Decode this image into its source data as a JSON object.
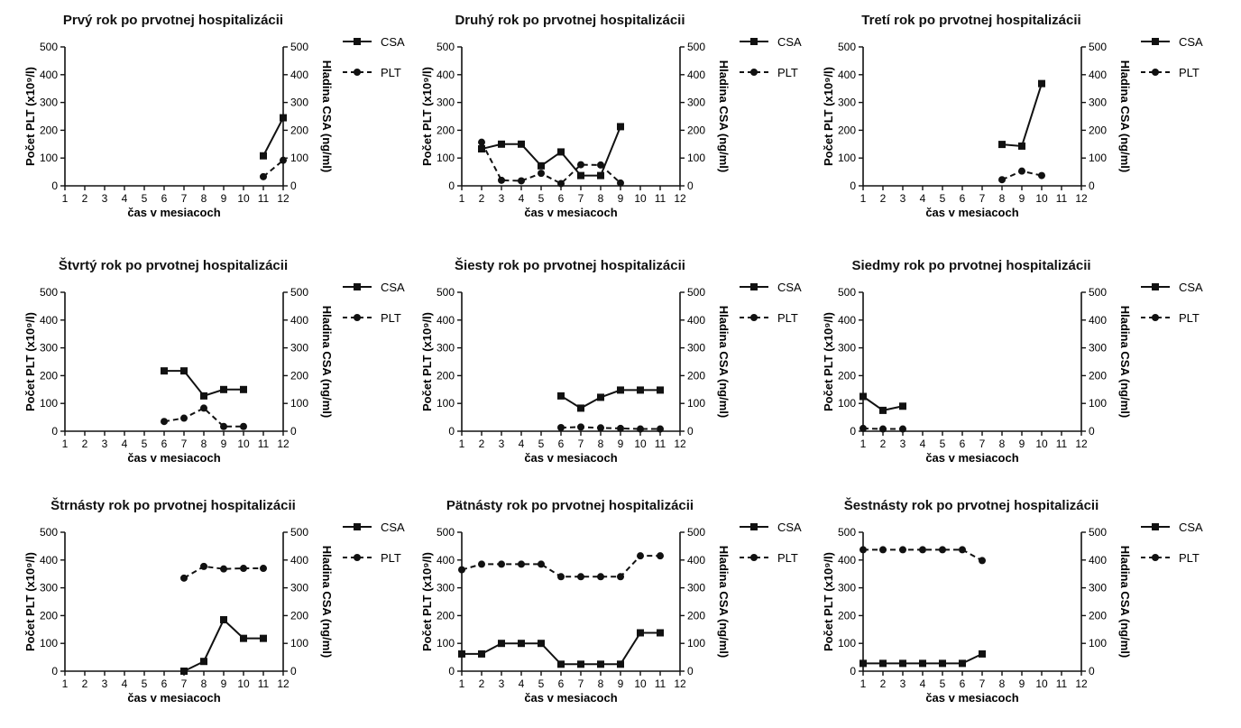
{
  "figure": {
    "chart_data": [
      {
        "type": "line",
        "title": "Prvý rok po prvotnej hospitalizácii",
        "xlabel": "čas v mesiacoch",
        "ylabel": "Počet PLT (x10⁹/l)",
        "ylabel_right": "Hladina CSA (ng/ml)",
        "categories": [
          "1",
          "2",
          "3",
          "4",
          "5",
          "6",
          "7",
          "8",
          "9",
          "10",
          "11",
          "12"
        ],
        "ylim": [
          0,
          500
        ],
        "y2lim": [
          0,
          500
        ],
        "yticks": [
          "0",
          "100",
          "200",
          "300",
          "400",
          "500"
        ],
        "y2ticks": [
          "0",
          "100",
          "200",
          "300",
          "400",
          "500"
        ],
        "legend": "right",
        "series": [
          {
            "name": "CSA",
            "style": "solid",
            "marker": "square",
            "x": [
              11,
              12
            ],
            "values": [
              108,
              245
            ]
          },
          {
            "name": "PLT",
            "style": "dashed",
            "marker": "circle",
            "x": [
              11,
              12
            ],
            "values": [
              33,
              92
            ]
          }
        ]
      },
      {
        "type": "line",
        "title": "Druhý rok po prvotnej hospitalizácii",
        "xlabel": "čas v mesiacoch",
        "ylabel": "Počet PLT (x10⁹/l)",
        "ylabel_right": "Hladina CSA (ng/ml)",
        "categories": [
          "1",
          "2",
          "3",
          "4",
          "5",
          "6",
          "7",
          "8",
          "9",
          "10",
          "11",
          "12"
        ],
        "ylim": [
          0,
          500
        ],
        "y2lim": [
          0,
          500
        ],
        "yticks": [
          "0",
          "100",
          "200",
          "300",
          "400",
          "500"
        ],
        "y2ticks": [
          "0",
          "100",
          "200",
          "300",
          "400",
          "500"
        ],
        "legend": "right",
        "series": [
          {
            "name": "CSA",
            "style": "solid",
            "marker": "square",
            "x": [
              2,
              3,
              4,
              5,
              6,
              7,
              8,
              9
            ],
            "values": [
              133,
              150,
              150,
              72,
              122,
              37,
              37,
              213
            ]
          },
          {
            "name": "PLT",
            "style": "dashed",
            "marker": "circle",
            "x": [
              2,
              3,
              4,
              5,
              6,
              7,
              8,
              9
            ],
            "values": [
              157,
              20,
              18,
              45,
              8,
              76,
              75,
              10
            ]
          }
        ]
      },
      {
        "type": "line",
        "title": "Tretí rok po prvotnej hospitalizácii",
        "xlabel": "čas v mesiacoch",
        "ylabel": "Počet PLT (x10⁹/l)",
        "ylabel_right": "Hladina CSA (ng/ml)",
        "categories": [
          "1",
          "2",
          "3",
          "4",
          "5",
          "6",
          "7",
          "8",
          "9",
          "10",
          "11",
          "12"
        ],
        "ylim": [
          0,
          500
        ],
        "y2lim": [
          0,
          500
        ],
        "yticks": [
          "0",
          "100",
          "200",
          "300",
          "400",
          "500"
        ],
        "y2ticks": [
          "0",
          "100",
          "200",
          "300",
          "400",
          "500"
        ],
        "legend": "right",
        "series": [
          {
            "name": "CSA",
            "style": "solid",
            "marker": "square",
            "x": [
              8,
              9,
              10
            ],
            "values": [
              149,
              143,
              368
            ]
          },
          {
            "name": "PLT",
            "style": "dashed",
            "marker": "circle",
            "x": [
              8,
              9,
              10
            ],
            "values": [
              22,
              53,
              37
            ]
          }
        ]
      },
      {
        "type": "line",
        "title": "Štvrtý rok po prvotnej hospitalizácii",
        "xlabel": "čas v mesiacoch",
        "ylabel": "Počet PLT (x10⁹/l)",
        "ylabel_right": "Hladina CSA (ng/ml)",
        "categories": [
          "1",
          "2",
          "3",
          "4",
          "5",
          "6",
          "7",
          "8",
          "9",
          "10",
          "11",
          "12"
        ],
        "ylim": [
          0,
          500
        ],
        "y2lim": [
          0,
          500
        ],
        "yticks": [
          "0",
          "100",
          "200",
          "300",
          "400",
          "500"
        ],
        "y2ticks": [
          "0",
          "100",
          "200",
          "300",
          "400",
          "500"
        ],
        "legend": "right",
        "series": [
          {
            "name": "CSA",
            "style": "solid",
            "marker": "square",
            "x": [
              6,
              7,
              8,
              9,
              10
            ],
            "values": [
              217,
              217,
              127,
              150,
              150
            ]
          },
          {
            "name": "PLT",
            "style": "dashed",
            "marker": "circle",
            "x": [
              6,
              7,
              8,
              9,
              10
            ],
            "values": [
              35,
              47,
              83,
              17,
              17
            ]
          }
        ]
      },
      {
        "type": "line",
        "title": "Šiesty rok po prvotnej hospitalizácii",
        "xlabel": "čas v mesiacoch",
        "ylabel": "Počet PLT (x10⁹/l)",
        "ylabel_right": "Hladina CSA (ng/ml)",
        "categories": [
          "1",
          "2",
          "3",
          "4",
          "5",
          "6",
          "7",
          "8",
          "9",
          "10",
          "11",
          "12"
        ],
        "ylim": [
          0,
          500
        ],
        "y2lim": [
          0,
          500
        ],
        "yticks": [
          "0",
          "100",
          "200",
          "300",
          "400",
          "500"
        ],
        "y2ticks": [
          "0",
          "100",
          "200",
          "300",
          "400",
          "500"
        ],
        "legend": "right",
        "series": [
          {
            "name": "CSA",
            "style": "solid",
            "marker": "square",
            "x": [
              6,
              7,
              8,
              9,
              10,
              11
            ],
            "values": [
              127,
              83,
              122,
              148,
              148,
              148
            ]
          },
          {
            "name": "PLT",
            "style": "dashed",
            "marker": "circle",
            "x": [
              6,
              7,
              8,
              9,
              10,
              11
            ],
            "values": [
              13,
              15,
              12,
              10,
              8,
              8
            ]
          }
        ]
      },
      {
        "type": "line",
        "title": "Siedmy rok po prvotnej hospitalizácii",
        "xlabel": "čas v mesiacoch",
        "ylabel": "Počet PLT (x10⁹/l)",
        "ylabel_right": "Hladina CSA (ng/ml)",
        "categories": [
          "1",
          "2",
          "3",
          "4",
          "5",
          "6",
          "7",
          "8",
          "9",
          "10",
          "11",
          "12"
        ],
        "ylim": [
          0,
          500
        ],
        "y2lim": [
          0,
          500
        ],
        "yticks": [
          "0",
          "100",
          "200",
          "300",
          "400",
          "500"
        ],
        "y2ticks": [
          "0",
          "100",
          "200",
          "300",
          "400",
          "500"
        ],
        "legend": "right",
        "series": [
          {
            "name": "CSA",
            "style": "solid",
            "marker": "square",
            "x": [
              1,
              2,
              3
            ],
            "values": [
              125,
              75,
              90
            ]
          },
          {
            "name": "PLT",
            "style": "dashed",
            "marker": "circle",
            "x": [
              1,
              2,
              3
            ],
            "values": [
              10,
              8,
              8
            ]
          }
        ]
      },
      {
        "type": "line",
        "title": "Štrnásty rok po prvotnej hospitalizácii",
        "xlabel": "čas v mesiacoch",
        "ylabel": "Počet PLT (x10⁹/l)",
        "ylabel_right": "Hladina CSA (ng/ml)",
        "categories": [
          "1",
          "2",
          "3",
          "4",
          "5",
          "6",
          "7",
          "8",
          "9",
          "10",
          "11",
          "12"
        ],
        "ylim": [
          0,
          500
        ],
        "y2lim": [
          0,
          500
        ],
        "yticks": [
          "0",
          "100",
          "200",
          "300",
          "400",
          "500"
        ],
        "y2ticks": [
          "0",
          "100",
          "200",
          "300",
          "400",
          "500"
        ],
        "legend": "right",
        "series": [
          {
            "name": "CSA",
            "style": "solid",
            "marker": "square",
            "x": [
              7,
              8,
              9,
              10,
              11
            ],
            "values": [
              0,
              35,
              185,
              118,
              118
            ]
          },
          {
            "name": "PLT",
            "style": "dashed",
            "marker": "circle",
            "x": [
              7,
              8,
              9,
              10,
              11
            ],
            "values": [
              335,
              377,
              368,
              370,
              370
            ]
          }
        ]
      },
      {
        "type": "line",
        "title": "Pätnásty rok po prvotnej hospitalizácii",
        "xlabel": "čas v mesiacoch",
        "ylabel": "Počet PLT (x10⁹/l)",
        "ylabel_right": "Hladina CSA (ng/ml)",
        "categories": [
          "1",
          "2",
          "3",
          "4",
          "5",
          "6",
          "7",
          "8",
          "9",
          "10",
          "11",
          "12"
        ],
        "ylim": [
          0,
          500
        ],
        "y2lim": [
          0,
          500
        ],
        "yticks": [
          "0",
          "100",
          "200",
          "300",
          "400",
          "500"
        ],
        "y2ticks": [
          "0",
          "100",
          "200",
          "300",
          "400",
          "500"
        ],
        "legend": "right",
        "series": [
          {
            "name": "CSA",
            "style": "solid",
            "marker": "square",
            "x": [
              1,
              2,
              3,
              4,
              5,
              6,
              7,
              8,
              9,
              10,
              11
            ],
            "values": [
              62,
              62,
              100,
              100,
              100,
              25,
              25,
              25,
              25,
              138,
              138
            ]
          },
          {
            "name": "PLT",
            "style": "dashed",
            "marker": "circle",
            "x": [
              1,
              2,
              3,
              4,
              5,
              6,
              7,
              8,
              9,
              10,
              11
            ],
            "values": [
              365,
              385,
              385,
              385,
              385,
              340,
              340,
              340,
              340,
              415,
              415
            ]
          }
        ]
      },
      {
        "type": "line",
        "title": "Šestnásty rok po prvotnej hospitalizácii",
        "xlabel": "čas v mesiacoch",
        "ylabel": "Počet PLT (x10⁹/l)",
        "ylabel_right": "Hladina CSA (ng/ml)",
        "categories": [
          "1",
          "2",
          "3",
          "4",
          "5",
          "6",
          "7",
          "8",
          "9",
          "10",
          "11",
          "12"
        ],
        "ylim": [
          0,
          500
        ],
        "y2lim": [
          0,
          500
        ],
        "yticks": [
          "0",
          "100",
          "200",
          "300",
          "400",
          "500"
        ],
        "y2ticks": [
          "0",
          "100",
          "200",
          "300",
          "400",
          "500"
        ],
        "legend": "right",
        "series": [
          {
            "name": "CSA",
            "style": "solid",
            "marker": "square",
            "x": [
              1,
              2,
              3,
              4,
              5,
              6,
              7
            ],
            "values": [
              28,
              28,
              28,
              28,
              28,
              28,
              62
            ]
          },
          {
            "name": "PLT",
            "style": "dashed",
            "marker": "circle",
            "x": [
              1,
              2,
              3,
              4,
              5,
              6,
              7
            ],
            "values": [
              437,
              437,
              437,
              437,
              437,
              437,
              398
            ]
          }
        ]
      }
    ]
  }
}
